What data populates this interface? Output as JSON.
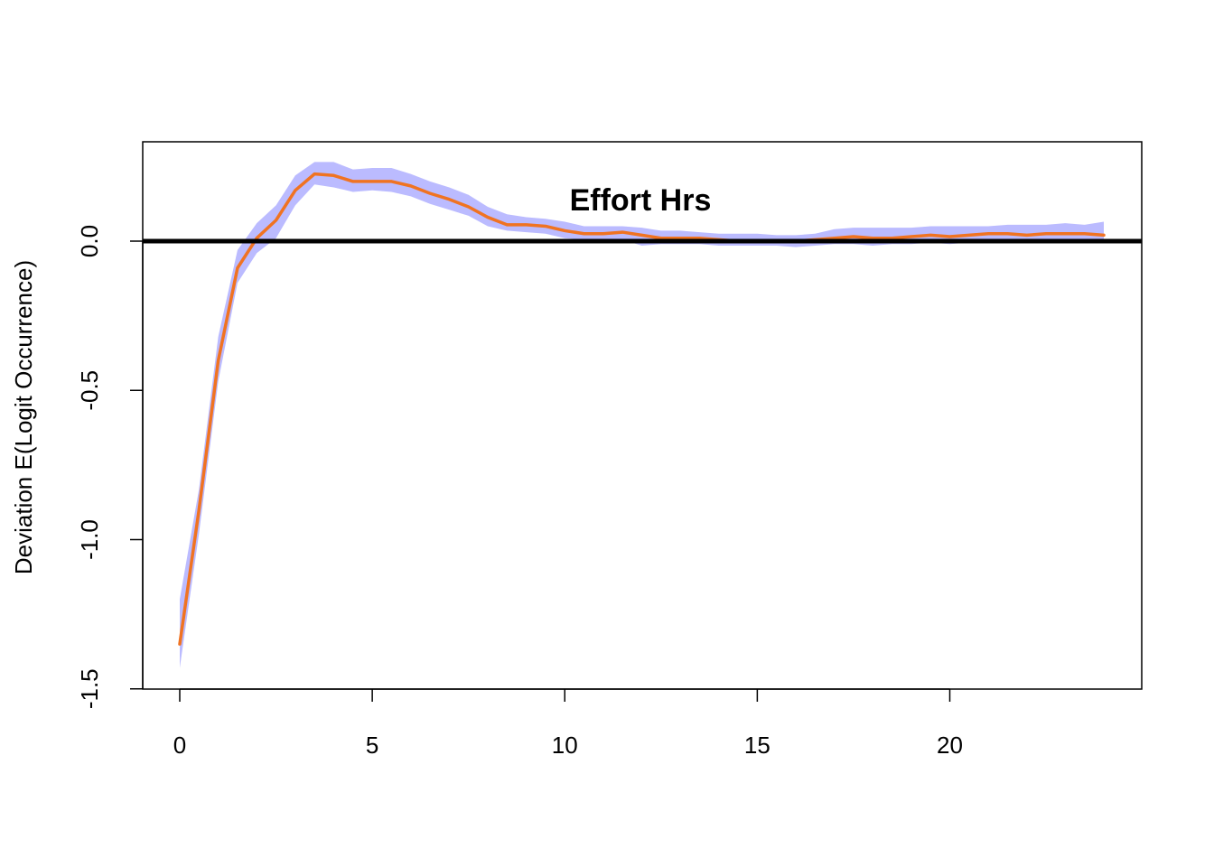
{
  "chart_data": {
    "type": "line",
    "title": "",
    "annotation": "Effort Hrs",
    "xlabel": "",
    "ylabel": "Deviation E(Logit Occurrence)",
    "xlim": [
      -1,
      25
    ],
    "ylim": [
      -1.5,
      0.33
    ],
    "xticks": [
      0,
      5,
      10,
      15,
      20
    ],
    "xtick_labels": [
      "0",
      "5",
      "10",
      "15",
      "20"
    ],
    "yticks": [
      -1.5,
      -1.0,
      -0.5,
      0.0
    ],
    "ytick_labels": [
      "-1.5",
      "-1.0",
      "-0.5",
      "0.0"
    ],
    "reference_line": 0,
    "grid": false,
    "colors": {
      "line": "#f07322",
      "band": "#bbbbff",
      "reference": "#000000"
    },
    "series": [
      {
        "x": [
          0,
          0.5,
          1,
          1.5,
          2,
          2.5,
          3,
          3.5,
          4,
          4.5,
          5,
          5.5,
          6,
          6.5,
          7,
          7.5,
          8,
          8.5,
          9,
          9.5,
          10,
          10.5,
          11,
          11.5,
          12,
          12.5,
          13,
          13.5,
          14,
          14.5,
          15,
          15.5,
          16,
          16.5,
          17,
          17.5,
          18,
          18.5,
          19,
          19.5,
          20,
          20.5,
          21,
          21.5,
          22,
          22.5,
          23,
          23.5,
          24
        ],
        "values": [
          -1.35,
          -0.9,
          -0.4,
          -0.09,
          0.01,
          0.07,
          0.17,
          0.225,
          0.22,
          0.2,
          0.2,
          0.2,
          0.185,
          0.16,
          0.14,
          0.115,
          0.08,
          0.055,
          0.055,
          0.05,
          0.035,
          0.025,
          0.025,
          0.03,
          0.02,
          0.01,
          0.01,
          0.01,
          0.005,
          0.0,
          0.0,
          0.0,
          0.0,
          0.005,
          0.01,
          0.015,
          0.01,
          0.01,
          0.015,
          0.02,
          0.015,
          0.02,
          0.025,
          0.025,
          0.02,
          0.025,
          0.025,
          0.025,
          0.02
        ],
        "lower": [
          -1.43,
          -0.98,
          -0.47,
          -0.14,
          -0.04,
          0.01,
          0.12,
          0.19,
          0.18,
          0.165,
          0.17,
          0.165,
          0.15,
          0.125,
          0.105,
          0.085,
          0.05,
          0.035,
          0.03,
          0.025,
          0.01,
          0.005,
          0.005,
          0.005,
          -0.015,
          -0.01,
          -0.01,
          -0.01,
          -0.015,
          -0.015,
          -0.015,
          -0.015,
          -0.02,
          -0.015,
          -0.01,
          -0.01,
          -0.015,
          -0.01,
          -0.01,
          -0.005,
          -0.01,
          -0.005,
          -0.005,
          -0.005,
          -0.005,
          -0.005,
          0.0,
          -0.005,
          -0.005
        ],
        "upper": [
          -1.2,
          -0.83,
          -0.32,
          -0.03,
          0.06,
          0.12,
          0.22,
          0.265,
          0.265,
          0.24,
          0.245,
          0.245,
          0.225,
          0.2,
          0.18,
          0.155,
          0.115,
          0.09,
          0.08,
          0.075,
          0.065,
          0.05,
          0.05,
          0.05,
          0.045,
          0.035,
          0.035,
          0.03,
          0.025,
          0.025,
          0.025,
          0.02,
          0.02,
          0.025,
          0.04,
          0.045,
          0.045,
          0.045,
          0.045,
          0.05,
          0.05,
          0.05,
          0.05,
          0.055,
          0.055,
          0.055,
          0.06,
          0.055,
          0.065
        ]
      }
    ]
  }
}
